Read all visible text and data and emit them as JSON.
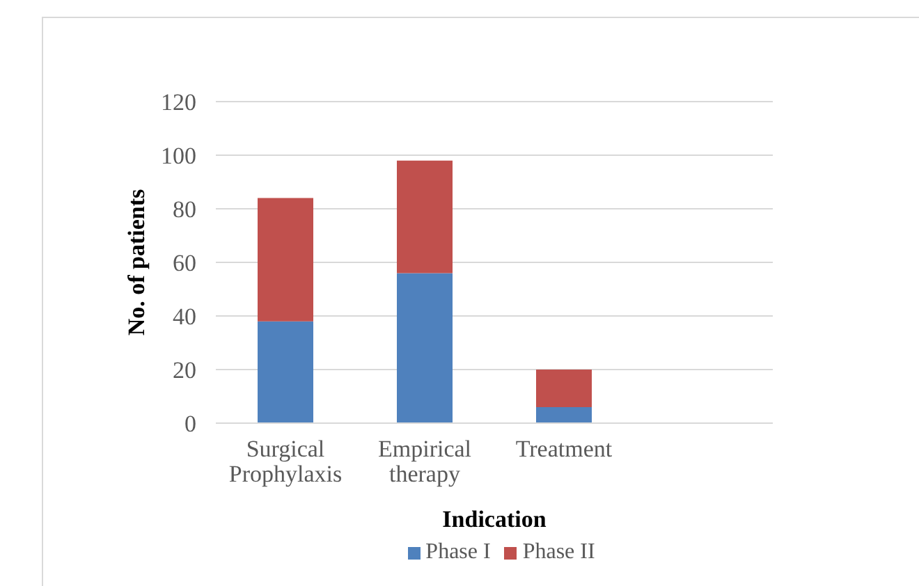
{
  "chart_data": {
    "type": "bar",
    "xlabel": "Indication",
    "ylabel": "No. of patients",
    "categories": [
      "Surgical Prophylaxis",
      "Empirical therapy",
      "Treatment",
      null
    ],
    "series": [
      {
        "name": "Phase I",
        "color": "#4f81bd",
        "values": [
          38,
          56,
          6,
          null
        ]
      },
      {
        "name": "Phase II",
        "color": "#c0504d",
        "values": [
          46,
          42,
          14,
          null
        ]
      }
    ],
    "stacked": true,
    "ylim": [
      0,
      120
    ],
    "yticks": [
      0,
      20,
      40,
      60,
      80,
      100,
      120
    ],
    "grid": "y",
    "legend": "bottom"
  }
}
